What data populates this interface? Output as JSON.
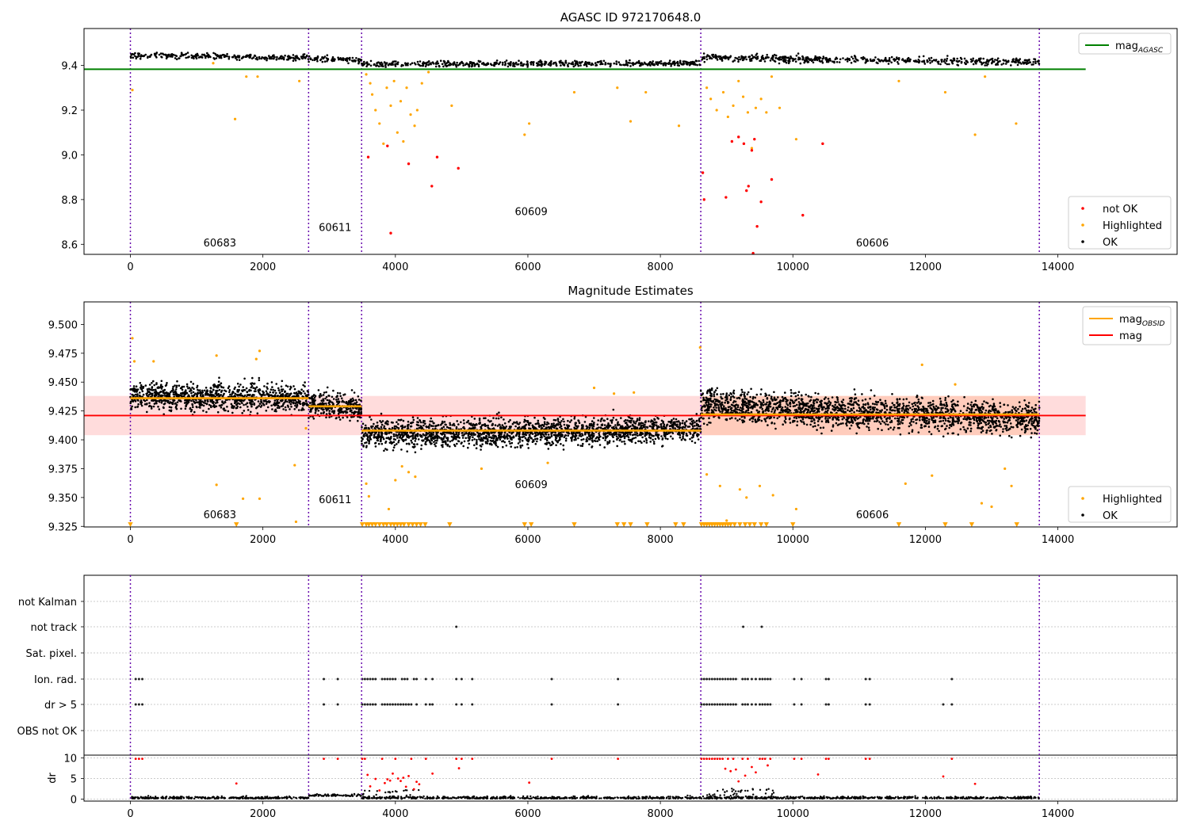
{
  "chart_data": [
    {
      "type": "scatter",
      "title": "AGASC ID 972170648.0",
      "xlim": [
        -700,
        15800
      ],
      "ylim": [
        8.555,
        9.565
      ],
      "xticks": [
        0,
        2000,
        4000,
        6000,
        8000,
        10000,
        12000,
        14000
      ],
      "yticks": [
        8.6,
        8.8,
        9.0,
        9.2,
        9.4
      ],
      "ytick_labels": [
        "8.6",
        "8.8",
        "9.0",
        "9.2",
        "9.4"
      ],
      "obsid_boundaries": [
        0,
        2690,
        3490,
        8610,
        13720
      ],
      "obsid_labels": [
        {
          "text": "60683",
          "x": 1350,
          "y": 8.59
        },
        {
          "text": "60611",
          "x": 3090,
          "y": 8.66
        },
        {
          "text": "60609",
          "x": 6050,
          "y": 8.73
        },
        {
          "text": "60606",
          "x": 11200,
          "y": 8.59
        }
      ],
      "lines": [
        {
          "name": "mag_AGASC",
          "color": "#008000",
          "x": [
            -700,
            14420
          ],
          "y": [
            9.383,
            9.383
          ]
        }
      ],
      "legend_upper": {
        "placement": "top-right",
        "entries": [
          {
            "label": "mag",
            "sub": "AGASC",
            "color": "#008000"
          }
        ]
      },
      "legend_lower": {
        "placement": "bottom-right",
        "entries": [
          {
            "label": "not OK",
            "color": "#ff0000"
          },
          {
            "label": "Highlighted",
            "color": "#ffa500"
          },
          {
            "label": "OK",
            "color": "#000000"
          }
        ]
      },
      "ok_segments": [
        {
          "x0": 0,
          "x1": 2690,
          "y0": 9.445,
          "y1": 9.435,
          "spread": 0.012
        },
        {
          "x0": 2690,
          "x1": 3490,
          "y0": 9.43,
          "y1": 9.425,
          "spread": 0.012
        },
        {
          "x0": 3490,
          "x1": 8610,
          "y0": 9.405,
          "y1": 9.41,
          "spread": 0.011
        },
        {
          "x0": 8610,
          "x1": 13720,
          "y0": 9.435,
          "y1": 9.415,
          "spread": 0.015
        }
      ],
      "highlighted_points": [
        [
          30,
          9.29
        ],
        [
          1250,
          9.41
        ],
        [
          1580,
          9.16
        ],
        [
          1750,
          9.35
        ],
        [
          1920,
          9.35
        ],
        [
          2550,
          9.33
        ],
        [
          3560,
          9.36
        ],
        [
          3620,
          9.32
        ],
        [
          3650,
          9.27
        ],
        [
          3700,
          9.2
        ],
        [
          3760,
          9.14
        ],
        [
          3820,
          9.05
        ],
        [
          3870,
          9.3
        ],
        [
          3930,
          9.22
        ],
        [
          3980,
          9.33
        ],
        [
          4030,
          9.1
        ],
        [
          4080,
          9.24
        ],
        [
          4120,
          9.06
        ],
        [
          4170,
          9.3
        ],
        [
          4230,
          9.18
        ],
        [
          4290,
          9.13
        ],
        [
          4330,
          9.2
        ],
        [
          4400,
          9.32
        ],
        [
          4500,
          9.37
        ],
        [
          4850,
          9.22
        ],
        [
          5950,
          9.09
        ],
        [
          6020,
          9.14
        ],
        [
          6700,
          9.28
        ],
        [
          7350,
          9.3
        ],
        [
          7550,
          9.15
        ],
        [
          7780,
          9.28
        ],
        [
          8280,
          9.13
        ],
        [
          8700,
          9.3
        ],
        [
          8760,
          9.25
        ],
        [
          8850,
          9.2
        ],
        [
          8950,
          9.28
        ],
        [
          9020,
          9.17
        ],
        [
          9100,
          9.22
        ],
        [
          9180,
          9.33
        ],
        [
          9250,
          9.26
        ],
        [
          9320,
          9.19
        ],
        [
          9380,
          9.03
        ],
        [
          9440,
          9.21
        ],
        [
          9520,
          9.25
        ],
        [
          9600,
          9.19
        ],
        [
          9680,
          9.35
        ],
        [
          9800,
          9.21
        ],
        [
          10050,
          9.07
        ],
        [
          11600,
          9.33
        ],
        [
          12300,
          9.28
        ],
        [
          12750,
          9.09
        ],
        [
          12900,
          9.35
        ],
        [
          13370,
          9.14
        ]
      ],
      "notok_points": [
        [
          3590,
          8.99
        ],
        [
          3880,
          9.04
        ],
        [
          3930,
          8.65
        ],
        [
          4200,
          8.96
        ],
        [
          4550,
          8.86
        ],
        [
          4630,
          8.99
        ],
        [
          4950,
          8.94
        ],
        [
          8640,
          8.92
        ],
        [
          8660,
          8.8
        ],
        [
          8990,
          8.81
        ],
        [
          9080,
          9.06
        ],
        [
          9180,
          9.08
        ],
        [
          9260,
          9.05
        ],
        [
          9300,
          8.84
        ],
        [
          9330,
          8.86
        ],
        [
          9380,
          9.02
        ],
        [
          9420,
          9.07
        ],
        [
          9460,
          8.68
        ],
        [
          9520,
          8.79
        ],
        [
          9680,
          8.89
        ],
        [
          10150,
          8.73
        ],
        [
          10450,
          9.05
        ],
        [
          9400,
          8.56
        ]
      ]
    },
    {
      "type": "scatter",
      "title": "Magnitude Estimates",
      "xlim": [
        -700,
        15800
      ],
      "ylim": [
        9.3245,
        9.5195
      ],
      "xticks": [
        0,
        2000,
        4000,
        6000,
        8000,
        10000,
        12000,
        14000
      ],
      "yticks": [
        9.325,
        9.35,
        9.375,
        9.4,
        9.425,
        9.45,
        9.475,
        9.5
      ],
      "ytick_labels": [
        "9.325",
        "9.350",
        "9.375",
        "9.400",
        "9.425",
        "9.450",
        "9.475",
        "9.500"
      ],
      "obsid_boundaries": [
        0,
        2690,
        3490,
        8610,
        13720
      ],
      "obsid_labels": [
        {
          "text": "60683",
          "x": 1350,
          "y": 9.332
        },
        {
          "text": "60611",
          "x": 3090,
          "y": 9.345
        },
        {
          "text": "60609",
          "x": 6050,
          "y": 9.358
        },
        {
          "text": "60606",
          "x": 11200,
          "y": 9.332
        }
      ],
      "band": {
        "x0": -700,
        "x1": 14420,
        "y0": 9.404,
        "y1": 9.438,
        "color": "#ffc0c0"
      },
      "band2": {
        "x0": 8610,
        "x1": 13720,
        "y0": 9.404,
        "y1": 9.438,
        "color": "#ffb080"
      },
      "lines": [
        {
          "name": "mag",
          "color": "#ff0000",
          "x": [
            -700,
            14420
          ],
          "y": [
            9.421,
            9.421
          ]
        },
        {
          "name": "mag_OBSID 60683",
          "color": "#ffa500",
          "x": [
            0,
            2690
          ],
          "y": [
            9.436,
            9.436
          ]
        },
        {
          "name": "mag_OBSID 60611",
          "color": "#ffa500",
          "x": [
            2690,
            3490
          ],
          "y": [
            9.429,
            9.429
          ]
        },
        {
          "name": "mag_OBSID 60609",
          "color": "#ffa500",
          "x": [
            3490,
            8610
          ],
          "y": [
            9.408,
            9.408
          ]
        },
        {
          "name": "mag_OBSID 60606",
          "color": "#ffa500",
          "x": [
            8610,
            13720
          ],
          "y": [
            9.422,
            9.422
          ]
        }
      ],
      "legend_upper": {
        "placement": "top-right",
        "entries": [
          {
            "label": "mag",
            "sub": "OBSID",
            "color": "#ffa500"
          },
          {
            "label": "mag",
            "sub": "",
            "color": "#ff0000"
          }
        ]
      },
      "legend_lower": {
        "placement": "bottom-right",
        "entries": [
          {
            "label": "Highlighted",
            "color": "#ffa500"
          },
          {
            "label": "OK",
            "color": "#000000"
          }
        ]
      },
      "ok_segments": [
        {
          "x0": 0,
          "x1": 2690,
          "y0": 9.438,
          "y1": 9.436,
          "spread": 0.011
        },
        {
          "x0": 2690,
          "x1": 3490,
          "y0": 9.43,
          "y1": 9.428,
          "spread": 0.01
        },
        {
          "x0": 3490,
          "x1": 8610,
          "y0": 9.405,
          "y1": 9.409,
          "spread": 0.011
        },
        {
          "x0": 8610,
          "x1": 13720,
          "y0": 9.43,
          "y1": 9.418,
          "spread": 0.013
        }
      ],
      "highlighted_points": [
        [
          30,
          9.488
        ],
        [
          60,
          9.468
        ],
        [
          350,
          9.468
        ],
        [
          1300,
          9.473
        ],
        [
          1950,
          9.477
        ],
        [
          1900,
          9.47
        ],
        [
          1300,
          9.361
        ],
        [
          1700,
          9.349
        ],
        [
          1950,
          9.349
        ],
        [
          2500,
          9.329
        ],
        [
          2480,
          9.378
        ],
        [
          2650,
          9.41
        ],
        [
          3560,
          9.362
        ],
        [
          3600,
          9.351
        ],
        [
          3900,
          9.34
        ],
        [
          4000,
          9.365
        ],
        [
          4100,
          9.377
        ],
        [
          4200,
          9.372
        ],
        [
          4300,
          9.368
        ],
        [
          5300,
          9.375
        ],
        [
          6300,
          9.38
        ],
        [
          7000,
          9.445
        ],
        [
          7300,
          9.44
        ],
        [
          7600,
          9.441
        ],
        [
          8600,
          9.48
        ],
        [
          8700,
          9.37
        ],
        [
          8900,
          9.36
        ],
        [
          9000,
          9.33
        ],
        [
          9200,
          9.357
        ],
        [
          9300,
          9.35
        ],
        [
          9500,
          9.36
        ],
        [
          9700,
          9.352
        ],
        [
          10050,
          9.34
        ],
        [
          11700,
          9.362
        ],
        [
          11950,
          9.465
        ],
        [
          12100,
          9.369
        ],
        [
          12450,
          9.448
        ],
        [
          12850,
          9.345
        ],
        [
          13000,
          9.342
        ],
        [
          13300,
          9.36
        ],
        [
          13200,
          9.375
        ]
      ],
      "down_markers_y": 9.3265,
      "down_markers_x": [
        0,
        1600,
        3500,
        3560,
        3600,
        3650,
        3700,
        3760,
        3820,
        3870,
        3930,
        3980,
        4030,
        4080,
        4130,
        4200,
        4260,
        4320,
        4380,
        4450,
        4820,
        5950,
        6050,
        6700,
        7350,
        7450,
        7550,
        7800,
        8230,
        8350,
        8620,
        8660,
        8700,
        8740,
        8780,
        8820,
        8860,
        8900,
        8940,
        8980,
        9020,
        9060,
        9120,
        9200,
        9280,
        9350,
        9420,
        9520,
        9600,
        10000,
        11600,
        12300,
        12700,
        13380
      ]
    },
    {
      "type": "scatter",
      "title": "",
      "xlim": [
        -700,
        15800
      ],
      "xticks": [
        0,
        2000,
        4000,
        6000,
        8000,
        10000,
        12000,
        14000
      ],
      "flag_rows": [
        "not Kalman",
        "not track",
        "Sat. pixel.",
        "Ion. rad.",
        "dr > 5",
        "OBS not OK"
      ],
      "flag_points": {
        "not track": [
          4920,
          9250,
          9530
        ],
        "Ion. rad.": [
          80,
          130,
          180,
          2920,
          3130,
          3500,
          3540,
          3580,
          3620,
          3660,
          3700,
          3800,
          3840,
          3880,
          3920,
          3960,
          4000,
          4100,
          4140,
          4180,
          4280,
          4320,
          4460,
          4560,
          4920,
          5000,
          5160,
          6360,
          7360,
          8620,
          8660,
          8700,
          8740,
          8780,
          8820,
          8860,
          8900,
          8940,
          8980,
          9020,
          9060,
          9100,
          9140,
          9240,
          9280,
          9320,
          9380,
          9440,
          9500,
          9540,
          9580,
          9620,
          9660,
          10020,
          10130,
          10500,
          10540,
          11100,
          11160,
          12400
        ],
        "dr > 5": [
          80,
          130,
          180,
          2920,
          3130,
          3500,
          3540,
          3580,
          3620,
          3660,
          3700,
          3800,
          3840,
          3880,
          3920,
          3960,
          4000,
          4040,
          4080,
          4120,
          4160,
          4200,
          4240,
          4320,
          4460,
          4520,
          4560,
          4920,
          5000,
          5160,
          6360,
          7360,
          8620,
          8660,
          8700,
          8740,
          8780,
          8820,
          8860,
          8900,
          8940,
          8980,
          9020,
          9060,
          9100,
          9140,
          9240,
          9280,
          9320,
          9380,
          9440,
          9500,
          9540,
          9580,
          9620,
          9660,
          10020,
          10130,
          10500,
          10540,
          11100,
          11160,
          12270,
          12400
        ]
      },
      "dr_axis": {
        "ylabel": "dr",
        "yticks": [
          0,
          5,
          10
        ],
        "ylim": [
          -0.5,
          10.7
        ]
      },
      "dr_red_points": [
        [
          80,
          9.8
        ],
        [
          130,
          9.8
        ],
        [
          180,
          9.8
        ],
        [
          1600,
          3.8
        ],
        [
          2920,
          9.8
        ],
        [
          3130,
          9.8
        ],
        [
          3500,
          9.8
        ],
        [
          3540,
          9.8
        ],
        [
          3580,
          5.9
        ],
        [
          3620,
          3.1
        ],
        [
          3700,
          4.9
        ],
        [
          3760,
          2.1
        ],
        [
          3800,
          9.8
        ],
        [
          3840,
          3.9
        ],
        [
          3880,
          4.8
        ],
        [
          3920,
          4.5
        ],
        [
          3960,
          6.2
        ],
        [
          4000,
          9.8
        ],
        [
          4040,
          5.0
        ],
        [
          4080,
          4.4
        ],
        [
          4120,
          5.2
        ],
        [
          4160,
          3.0
        ],
        [
          4200,
          5.6
        ],
        [
          4240,
          9.8
        ],
        [
          4280,
          2.4
        ],
        [
          4320,
          4.2
        ],
        [
          4360,
          3.6
        ],
        [
          4460,
          9.8
        ],
        [
          4560,
          6.2
        ],
        [
          4920,
          9.8
        ],
        [
          4960,
          7.5
        ],
        [
          5000,
          9.8
        ],
        [
          5160,
          9.8
        ],
        [
          6020,
          4.0
        ],
        [
          6360,
          9.8
        ],
        [
          7360,
          9.8
        ],
        [
          8620,
          9.8
        ],
        [
          8660,
          9.8
        ],
        [
          8700,
          9.8
        ],
        [
          8740,
          9.8
        ],
        [
          8780,
          9.8
        ],
        [
          8820,
          9.8
        ],
        [
          8860,
          9.8
        ],
        [
          8900,
          9.8
        ],
        [
          8940,
          9.8
        ],
        [
          8980,
          7.4
        ],
        [
          9020,
          9.8
        ],
        [
          9060,
          6.8
        ],
        [
          9100,
          9.8
        ],
        [
          9140,
          7.2
        ],
        [
          9180,
          4.3
        ],
        [
          9240,
          9.8
        ],
        [
          9280,
          5.7
        ],
        [
          9320,
          9.8
        ],
        [
          9380,
          7.8
        ],
        [
          9440,
          6.5
        ],
        [
          9500,
          9.8
        ],
        [
          9540,
          9.8
        ],
        [
          9580,
          9.8
        ],
        [
          9620,
          8.2
        ],
        [
          9660,
          9.8
        ],
        [
          10020,
          9.8
        ],
        [
          10130,
          9.8
        ],
        [
          10380,
          6.0
        ],
        [
          10500,
          9.8
        ],
        [
          10540,
          9.8
        ],
        [
          11100,
          9.8
        ],
        [
          11160,
          9.8
        ],
        [
          12270,
          5.5
        ],
        [
          12400,
          9.8
        ],
        [
          12750,
          3.7
        ]
      ]
    }
  ]
}
